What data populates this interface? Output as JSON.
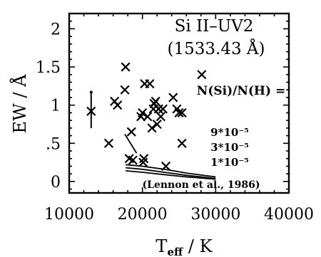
{
  "chart_data": {
    "type": "scatter",
    "title": "Si II–UV2",
    "subtitle": "(1533.43 Å)",
    "xlabel_main": "T",
    "xlabel_sub": "eff",
    "xlabel_unit": " / K",
    "ylabel": "EW  /  Å",
    "xlim": [
      10000,
      40000
    ],
    "ylim": [
      -0.15,
      2.2
    ],
    "x_ticks": [
      10000,
      20000,
      30000,
      40000
    ],
    "x_tick_labels": [
      "10000",
      "20000",
      "30000",
      "40000"
    ],
    "y_ticks": [
      0,
      0.5,
      1.0,
      1.5,
      2.0
    ],
    "y_tick_labels": [
      "0",
      ".5",
      "1",
      "1.5",
      "2"
    ],
    "grid": false,
    "legend": {
      "title": "N(Si)/N(H) =",
      "entries": [
        "9*10⁻⁵",
        "3*10⁻⁵",
        "1*10⁻⁵"
      ]
    },
    "reference": "(Lennon et al., 1986)",
    "series": [
      {
        "marker": "x",
        "points": [
          [
            15400,
            0.5
          ],
          [
            16200,
            1.05
          ],
          [
            16600,
            1.0
          ],
          [
            17600,
            1.2
          ],
          [
            17700,
            1.5
          ],
          [
            18500,
            0.65
          ],
          [
            18200,
            0.3
          ],
          [
            18700,
            0.28
          ],
          [
            19800,
            0.85
          ],
          [
            20000,
            0.9
          ],
          [
            20200,
            0.3
          ],
          [
            20100,
            0.25
          ],
          [
            20300,
            1.28
          ],
          [
            20700,
            0.85
          ],
          [
            21000,
            1.28
          ],
          [
            21300,
            0.7
          ],
          [
            21500,
            0.95
          ],
          [
            21600,
            1.02
          ],
          [
            21800,
            1.05
          ],
          [
            22000,
            0.75
          ],
          [
            22200,
            0.95
          ],
          [
            22500,
            0.85
          ],
          [
            22800,
            0.95
          ],
          [
            23200,
            0.2
          ],
          [
            24200,
            1.1
          ],
          [
            24700,
            0.95
          ],
          [
            25000,
            0.9
          ],
          [
            25400,
            0.9
          ],
          [
            25400,
            0.5
          ],
          [
            28100,
            1.4
          ]
        ]
      },
      {
        "marker": "errorbar",
        "points": [
          [
            13000,
            0.92
          ]
        ],
        "error": [
          0.25,
          0.22
        ]
      }
    ],
    "model_curves": [
      {
        "label": "9*10⁻⁵",
        "x": [
          17700,
          20000,
          23000,
          26000,
          30000
        ],
        "y": [
          0.22,
          0.2,
          0.16,
          0.11,
          0.06
        ]
      },
      {
        "label": "3*10⁻⁵",
        "x": [
          17700,
          20000,
          23000,
          26000,
          30000
        ],
        "y": [
          0.18,
          0.16,
          0.12,
          0.08,
          0.04
        ]
      },
      {
        "label": "1*10⁻⁵",
        "x": [
          17700,
          20000,
          23000,
          26000,
          30000
        ],
        "y": [
          0.14,
          0.12,
          0.09,
          0.06,
          0.03
        ]
      },
      {
        "label": "",
        "x": [
          17600,
          19200
        ],
        "y": [
          0.62,
          0.37
        ]
      }
    ]
  }
}
